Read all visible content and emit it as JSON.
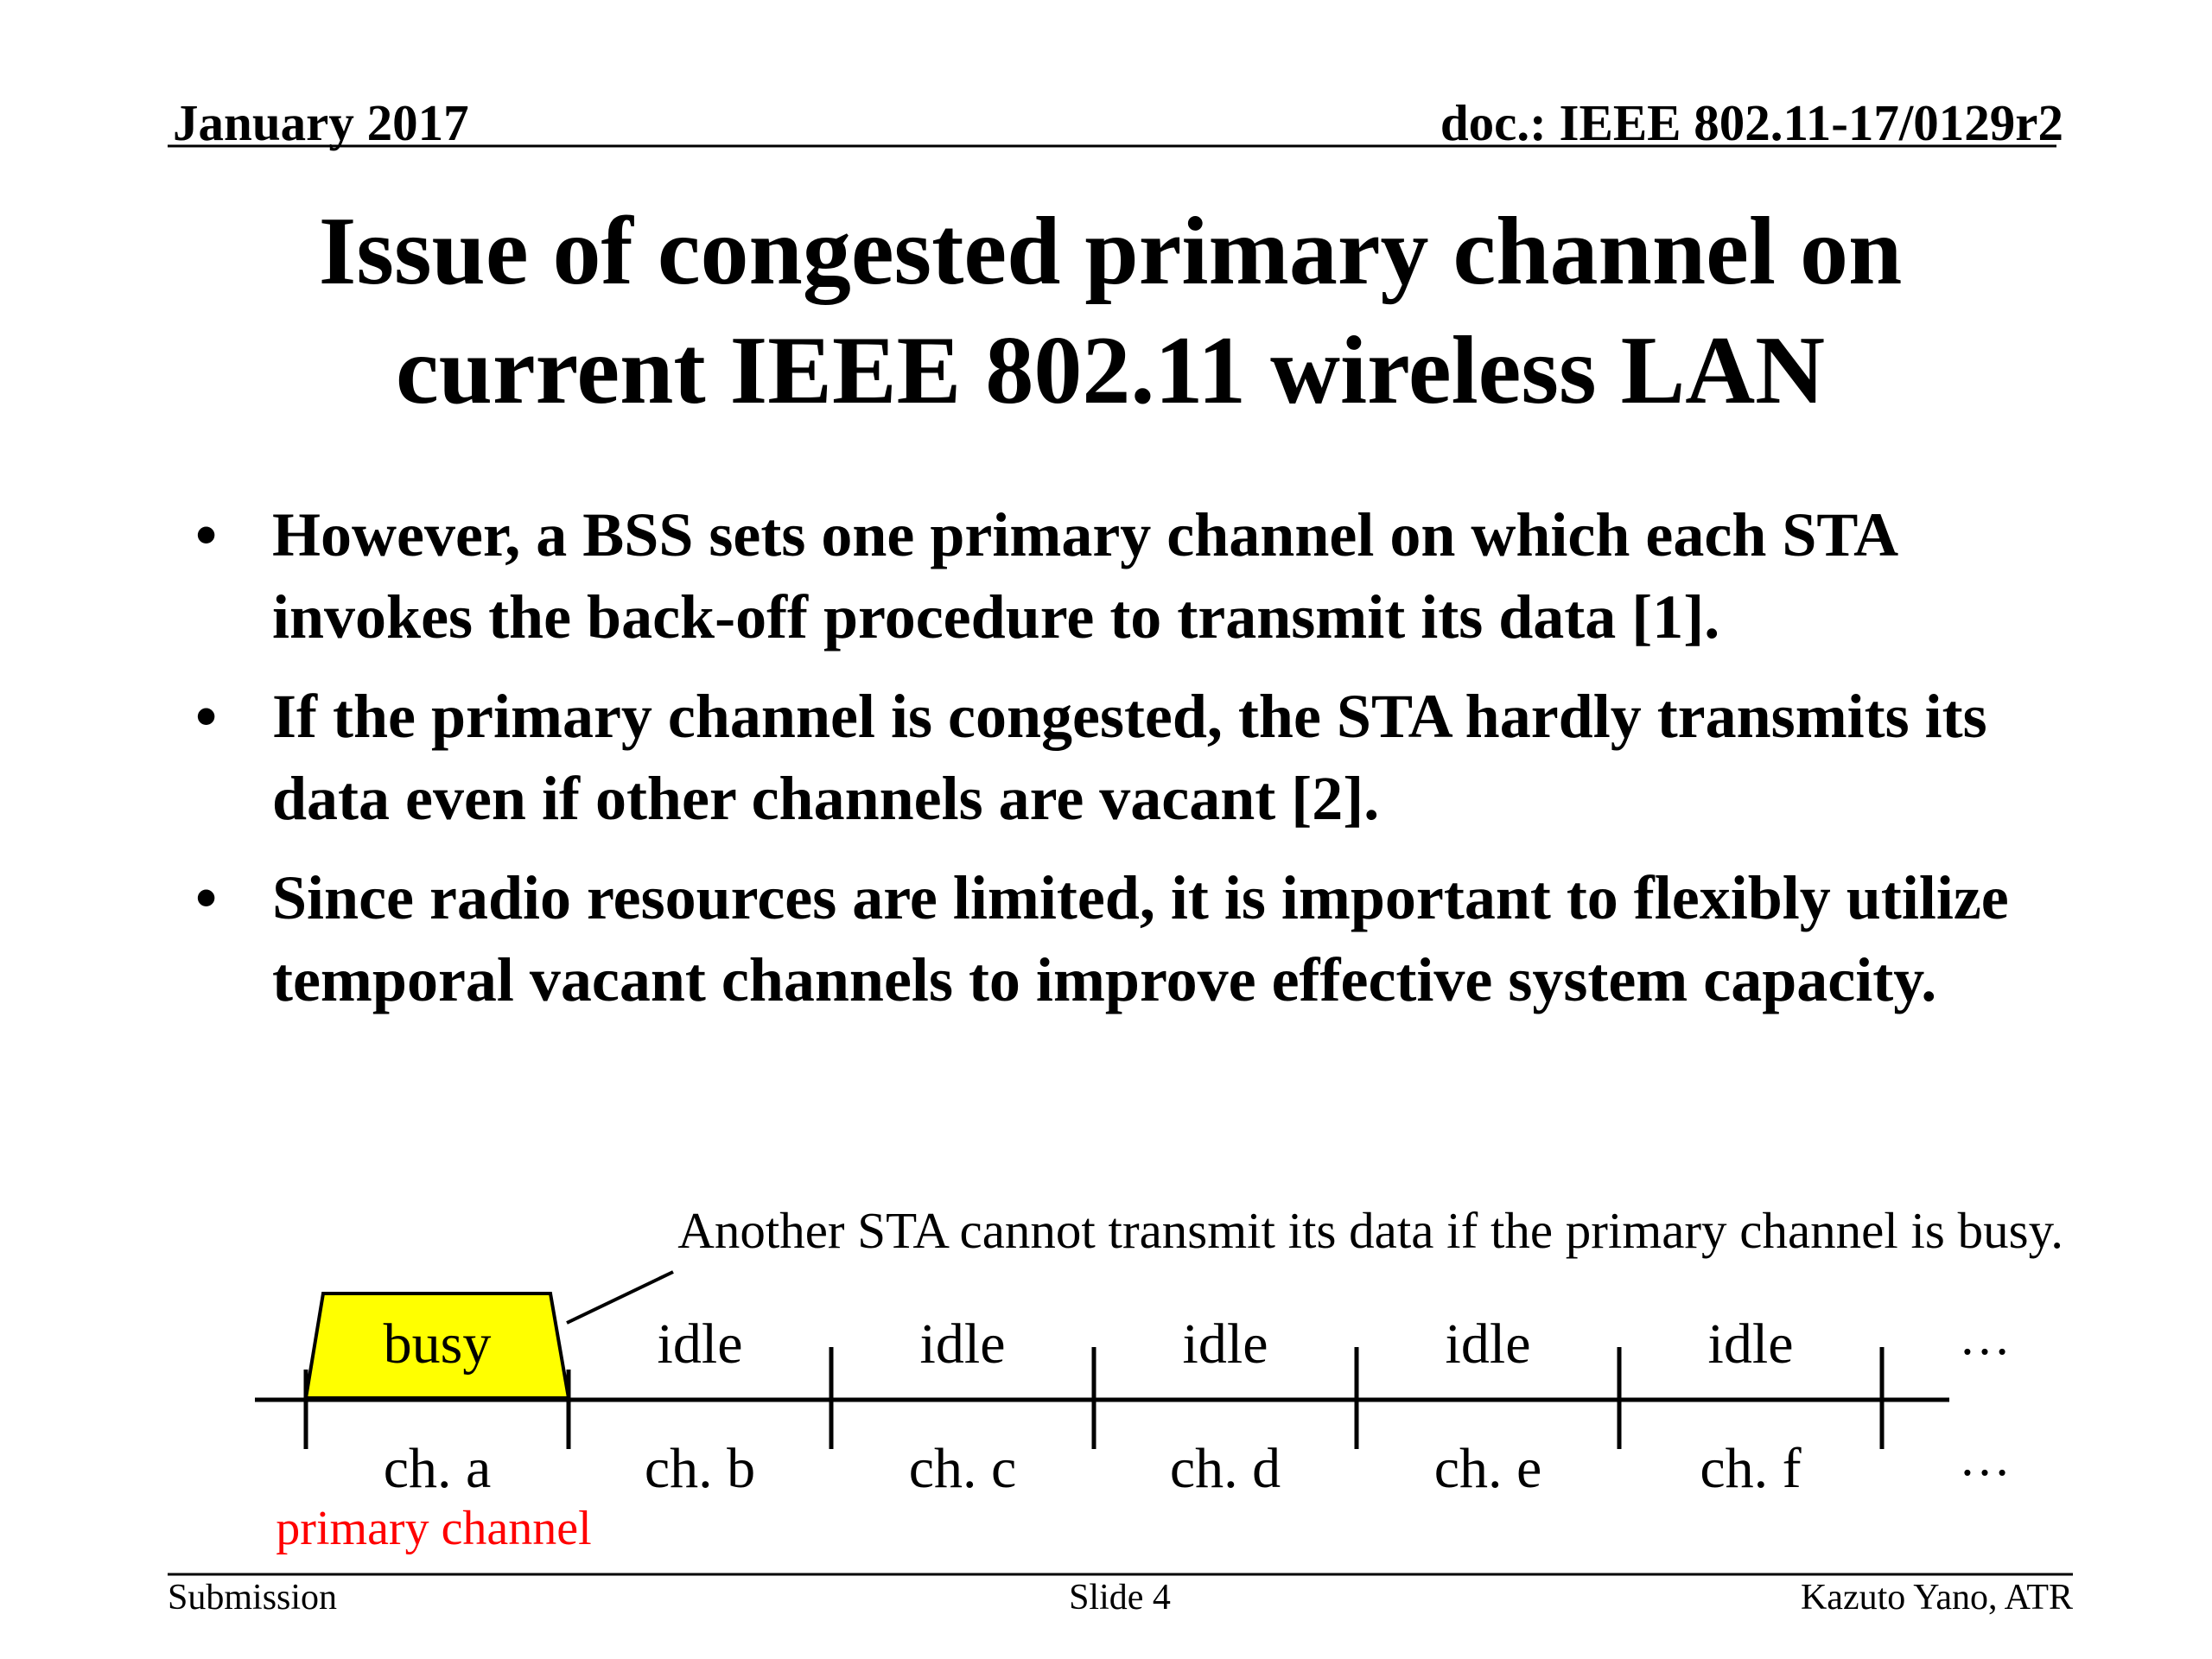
{
  "header": {
    "date": "January 2017",
    "doc": "doc.: IEEE 802.11-17/0129r2"
  },
  "title": {
    "lines": [
      "Issue of congested primary channel on",
      "current IEEE 802.11 wireless LAN"
    ]
  },
  "bullets": [
    "However, a BSS sets one primary channel on which each STA invokes the back-off procedure to transmit its data [1].",
    "If the primary channel is congested, the STA hardly transmits its data even if other channels are vacant [2].",
    "Since radio resources are limited, it is important to flexibly utilize temporal vacant channels to improve effective system capacity."
  ],
  "diagram": {
    "caption": "Another STA cannot transmit its data if the primary channel is busy.",
    "channels": [
      {
        "state": "busy",
        "label": "ch. a"
      },
      {
        "state": "idle",
        "label": "ch. b"
      },
      {
        "state": "idle",
        "label": "ch. c"
      },
      {
        "state": "idle",
        "label": "ch. d"
      },
      {
        "state": "idle",
        "label": "ch. e"
      },
      {
        "state": "idle",
        "label": "ch. f"
      }
    ],
    "state_ellipsis": "…",
    "label_ellipsis": "…",
    "primary_label": "primary channel"
  },
  "footer": {
    "left": "Submission",
    "center": "Slide 4",
    "right": "Kazuto Yano, ATR"
  }
}
